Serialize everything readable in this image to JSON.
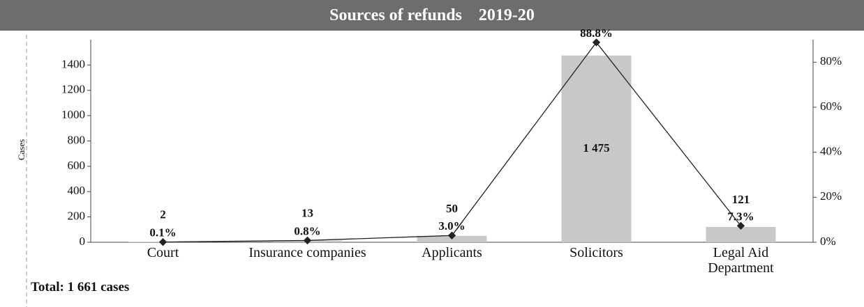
{
  "chart_data": {
    "type": "bar_line",
    "title": "Sources of refunds    2019-20",
    "y_label": "Cases",
    "categories": [
      "Court",
      "Insurance companies",
      "Applicants",
      "Solicitors",
      "Legal Aid\nDepartment"
    ],
    "series": [
      {
        "name": "Cases",
        "type": "bar",
        "color": "#c8c8c8",
        "values": [
          2,
          13,
          50,
          1475,
          121
        ],
        "value_labels": [
          "2",
          "13",
          "50",
          "1 475",
          "121"
        ]
      },
      {
        "name": "Share",
        "type": "line",
        "axis": "y2",
        "color": "#222222",
        "values": [
          0.1,
          0.8,
          3.0,
          88.8,
          7.3
        ],
        "value_labels": [
          "0.1%",
          "0.8%",
          "3.0%",
          "88.8%",
          "7.3%"
        ]
      }
    ],
    "ylim": [
      0,
      1600
    ],
    "yticks": [
      0,
      200,
      400,
      600,
      800,
      1000,
      1200,
      1400
    ],
    "y2lim": [
      0,
      90
    ],
    "y2ticks": [
      {
        "value": 0,
        "label": "0%"
      },
      {
        "value": 20,
        "label": "20%"
      },
      {
        "value": 40,
        "label": "40%"
      },
      {
        "value": 60,
        "label": "60%"
      },
      {
        "value": 80,
        "label": "80%"
      }
    ],
    "note": "Total: 1 661 cases"
  }
}
